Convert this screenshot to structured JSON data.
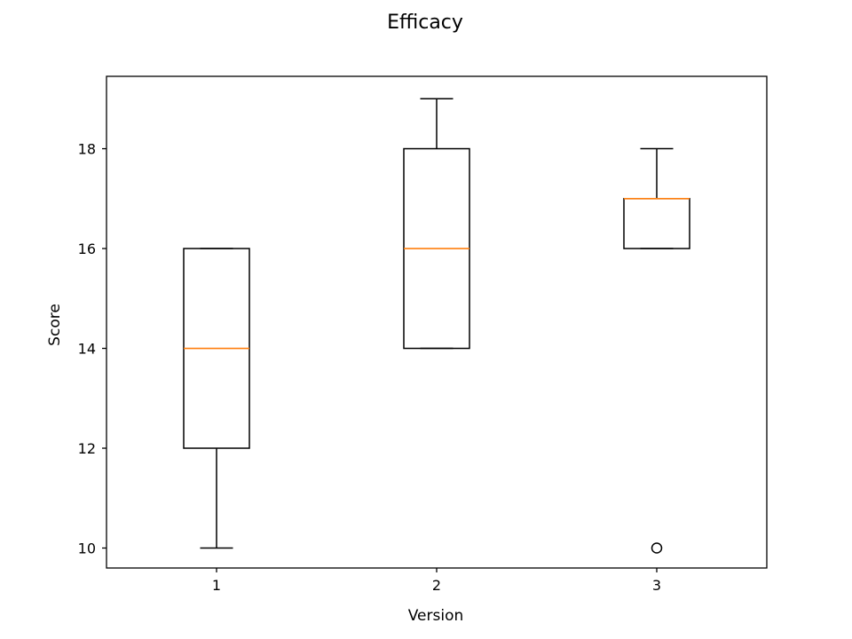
{
  "chart_data": {
    "type": "box",
    "title": "Efficacy",
    "xlabel": "Version",
    "ylabel": "Score",
    "categories": [
      "1",
      "2",
      "3"
    ],
    "yticks": [
      10,
      12,
      14,
      16,
      18
    ],
    "ylim": [
      9.6,
      19.45
    ],
    "boxes": [
      {
        "category": "1",
        "whisker_low": 10,
        "q1": 12,
        "median": 14,
        "q3": 16,
        "whisker_high": 16,
        "outliers": []
      },
      {
        "category": "2",
        "whisker_low": 14,
        "q1": 14,
        "median": 16,
        "q3": 18,
        "whisker_high": 19,
        "outliers": []
      },
      {
        "category": "3",
        "whisker_low": 16,
        "q1": 16,
        "median": 17,
        "q3": 17,
        "whisker_high": 18,
        "outliers": [
          10
        ]
      }
    ],
    "grid": false,
    "colors": {
      "box": "#000000",
      "median": "#ff7f0e",
      "background": "#ffffff"
    }
  }
}
